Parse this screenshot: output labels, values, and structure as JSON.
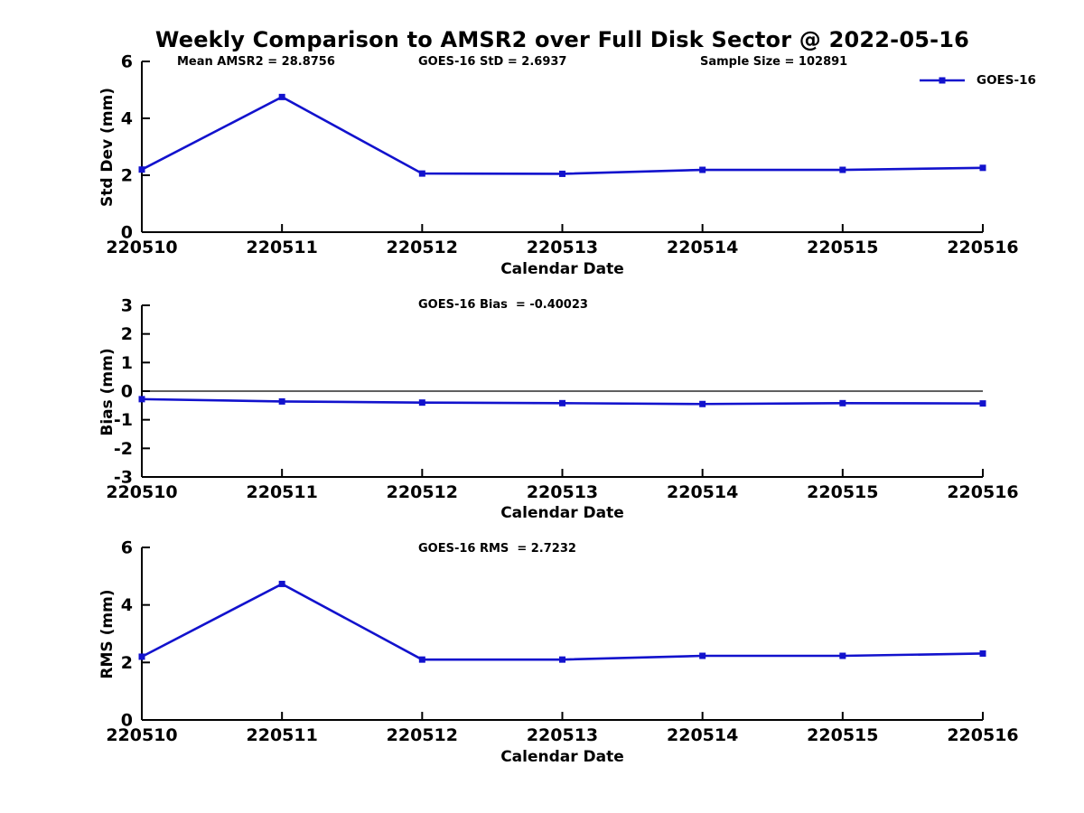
{
  "figure": {
    "title": "Weekly Comparison to AMSR2 over Full Disk Sector @ 2022-05-16",
    "background_color": "#ffffff",
    "line_color": "#1212cd",
    "axis_color": "#000000",
    "text_color": "#000000"
  },
  "legend": {
    "label": "GOES-16",
    "position": "top-right-outside",
    "marker": "square",
    "marker_color": "#1212cd"
  },
  "chart_data": [
    {
      "type": "line",
      "title": "",
      "annotations": [
        "Mean AMSR2 = 28.8756",
        "GOES-16 StD = 2.6937",
        "Sample Size = 102891"
      ],
      "categories": [
        "220510",
        "220511",
        "220512",
        "220513",
        "220514",
        "220515",
        "220516"
      ],
      "series": [
        {
          "name": "GOES-16",
          "values": [
            2.2,
            4.75,
            2.06,
            2.05,
            2.19,
            2.19,
            2.26
          ]
        }
      ],
      "xlabel": "Calendar Date",
      "ylabel": "Std Dev (mm)",
      "ylim": [
        0,
        6
      ],
      "yticks": [
        0,
        2,
        4,
        6
      ],
      "grid": false,
      "zero_line": false,
      "legend_entry": "GOES-16"
    },
    {
      "type": "line",
      "title": "",
      "annotation": "GOES-16 Bias  = -0.40023",
      "categories": [
        "220510",
        "220511",
        "220512",
        "220513",
        "220514",
        "220515",
        "220516"
      ],
      "series": [
        {
          "name": "GOES-16",
          "values": [
            -0.28,
            -0.36,
            -0.4,
            -0.42,
            -0.45,
            -0.42,
            -0.43
          ]
        }
      ],
      "xlabel": "Calendar Date",
      "ylabel": "Bias (mm)",
      "ylim": [
        -3,
        3
      ],
      "yticks": [
        -3,
        -2,
        -1,
        0,
        1,
        2,
        3
      ],
      "grid": false,
      "zero_line": true,
      "legend_entry": "GOES-16"
    },
    {
      "type": "line",
      "title": "",
      "annotation": "GOES-16 RMS  = 2.7232",
      "categories": [
        "220510",
        "220511",
        "220512",
        "220513",
        "220514",
        "220515",
        "220516"
      ],
      "series": [
        {
          "name": "GOES-16",
          "values": [
            2.2,
            4.73,
            2.1,
            2.1,
            2.23,
            2.23,
            2.31
          ]
        }
      ],
      "xlabel": "Calendar Date",
      "ylabel": "RMS (mm)",
      "ylim": [
        0,
        6
      ],
      "yticks": [
        0,
        2,
        4,
        6
      ],
      "grid": false,
      "zero_line": false,
      "legend_entry": "GOES-16"
    }
  ]
}
